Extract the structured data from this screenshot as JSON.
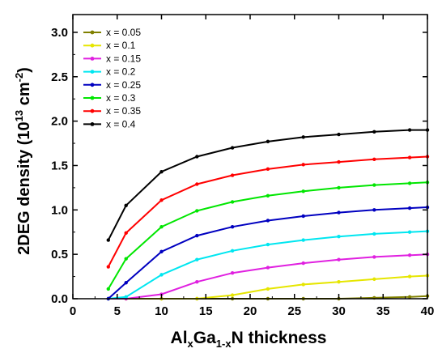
{
  "chart_data": {
    "type": "line",
    "xlabel": {
      "p1": "Al",
      "s1": "x",
      "p2": "Ga",
      "s2": "1-x",
      "p3": "N thickness"
    },
    "ylabel": {
      "p1": "2DEG density (10",
      "sup1": "13",
      "p2": " cm",
      "sup2": "-2",
      "p3": ")"
    },
    "xlim": [
      0,
      40
    ],
    "ylim": [
      0,
      3.2
    ],
    "xticks": [
      0,
      5,
      10,
      15,
      20,
      25,
      30,
      35,
      40
    ],
    "yticks": [
      0.0,
      0.5,
      1.0,
      1.5,
      2.0,
      2.5,
      3.0
    ],
    "ytick_labels": [
      "0.0",
      "0.5",
      "1.0",
      "1.5",
      "2.0",
      "2.5",
      "3.0"
    ],
    "x": [
      4,
      6,
      10,
      14,
      18,
      22,
      26,
      30,
      34,
      38,
      40
    ],
    "series": [
      {
        "name": "x = 0.05",
        "color": "#808000",
        "values": [
          0,
          0,
          0,
          0,
          0,
          0,
          0,
          0,
          0.01,
          0.02,
          0.03
        ]
      },
      {
        "name": "x = 0.1",
        "color": "#e6e600",
        "values": [
          0,
          0,
          0,
          0,
          0.04,
          0.11,
          0.16,
          0.19,
          0.22,
          0.25,
          0.26
        ]
      },
      {
        "name": "x = 0.15",
        "color": "#e020e0",
        "values": [
          0,
          0,
          0.05,
          0.19,
          0.29,
          0.35,
          0.4,
          0.44,
          0.47,
          0.49,
          0.5
        ]
      },
      {
        "name": "x = 0.2",
        "color": "#00e6f0",
        "values": [
          0,
          0.02,
          0.27,
          0.44,
          0.54,
          0.61,
          0.66,
          0.7,
          0.73,
          0.75,
          0.76
        ]
      },
      {
        "name": "x = 0.25",
        "color": "#0000c0",
        "values": [
          0,
          0.18,
          0.53,
          0.71,
          0.81,
          0.88,
          0.93,
          0.97,
          1.0,
          1.02,
          1.03
        ]
      },
      {
        "name": "x = 0.3",
        "color": "#00e600",
        "values": [
          0.11,
          0.45,
          0.81,
          0.99,
          1.09,
          1.16,
          1.21,
          1.25,
          1.28,
          1.3,
          1.31
        ]
      },
      {
        "name": "x = 0.35",
        "color": "#ff0000",
        "values": [
          0.36,
          0.74,
          1.11,
          1.29,
          1.39,
          1.46,
          1.51,
          1.54,
          1.57,
          1.59,
          1.6
        ]
      },
      {
        "name": "x = 0.4",
        "color": "#000000",
        "values": [
          0.66,
          1.05,
          1.43,
          1.6,
          1.7,
          1.77,
          1.82,
          1.85,
          1.88,
          1.9,
          1.9
        ]
      }
    ],
    "grid": false,
    "legend_position": "top-left"
  }
}
